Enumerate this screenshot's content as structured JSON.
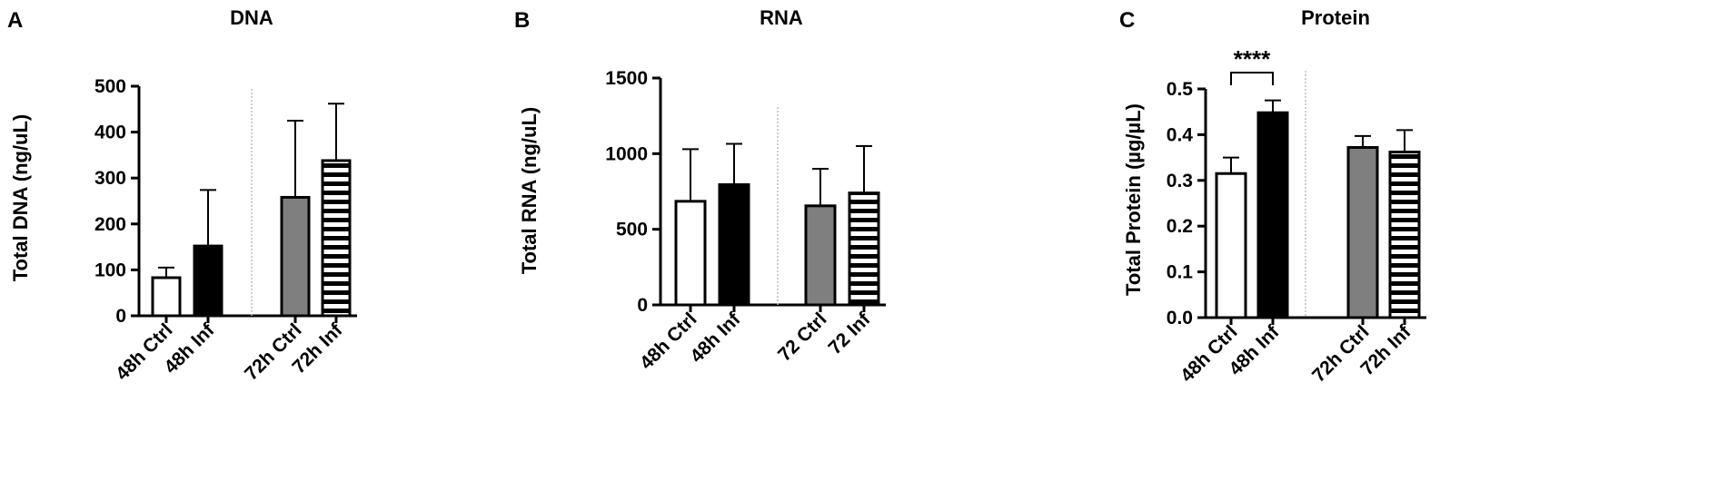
{
  "chart_data": [
    {
      "type": "bar",
      "panel": "A",
      "title": "DNA",
      "ylabel": "Total DNA (ng/uL)",
      "ylim": [
        0,
        500
      ],
      "yticks": [
        0,
        100,
        200,
        300,
        400,
        500
      ],
      "categories": [
        "48h Ctrl",
        "48h Inf",
        "72h Ctrl",
        "72h Inf"
      ],
      "values": [
        83,
        152,
        258,
        338
      ],
      "errors": [
        22,
        122,
        167,
        124
      ],
      "fills": [
        "white",
        "black",
        "gray",
        "stripes"
      ],
      "separator_after_index": 1,
      "significance": []
    },
    {
      "type": "bar",
      "panel": "B",
      "title": "RNA",
      "ylabel": "Total RNA (ng/uL)",
      "ylim": [
        0,
        1500
      ],
      "yticks": [
        0,
        500,
        1000,
        1500
      ],
      "categories": [
        "48h Ctrl",
        "48h Inf",
        "72 Ctrl",
        "72 Inf"
      ],
      "values": [
        685,
        795,
        655,
        740
      ],
      "errors": [
        345,
        270,
        245,
        310
      ],
      "fills": [
        "white",
        "black",
        "gray",
        "stripes"
      ],
      "separator_after_index": 1,
      "significance": []
    },
    {
      "type": "bar",
      "panel": "C",
      "title": "Protein",
      "ylabel": "Total Protein (µg/µL)",
      "ylim": [
        0,
        0.5
      ],
      "yticks": [
        "0.0",
        "0.1",
        "0.2",
        "0.3",
        "0.4",
        "0.5"
      ],
      "categories": [
        "48h Ctrl",
        "48h Inf",
        "72h Ctrl",
        "72h Inf"
      ],
      "values": [
        0.315,
        0.448,
        0.372,
        0.362
      ],
      "errors": [
        0.035,
        0.027,
        0.025,
        0.048
      ],
      "fills": [
        "white",
        "black",
        "gray",
        "stripes"
      ],
      "separator_after_index": 1,
      "significance": [
        {
          "from": 0,
          "to": 1,
          "label": "****"
        }
      ]
    }
  ],
  "colors": {
    "bar_black": "#000000",
    "bar_gray": "#7f7f7f",
    "bar_white": "#ffffff",
    "separator": "#bdbdbd"
  }
}
